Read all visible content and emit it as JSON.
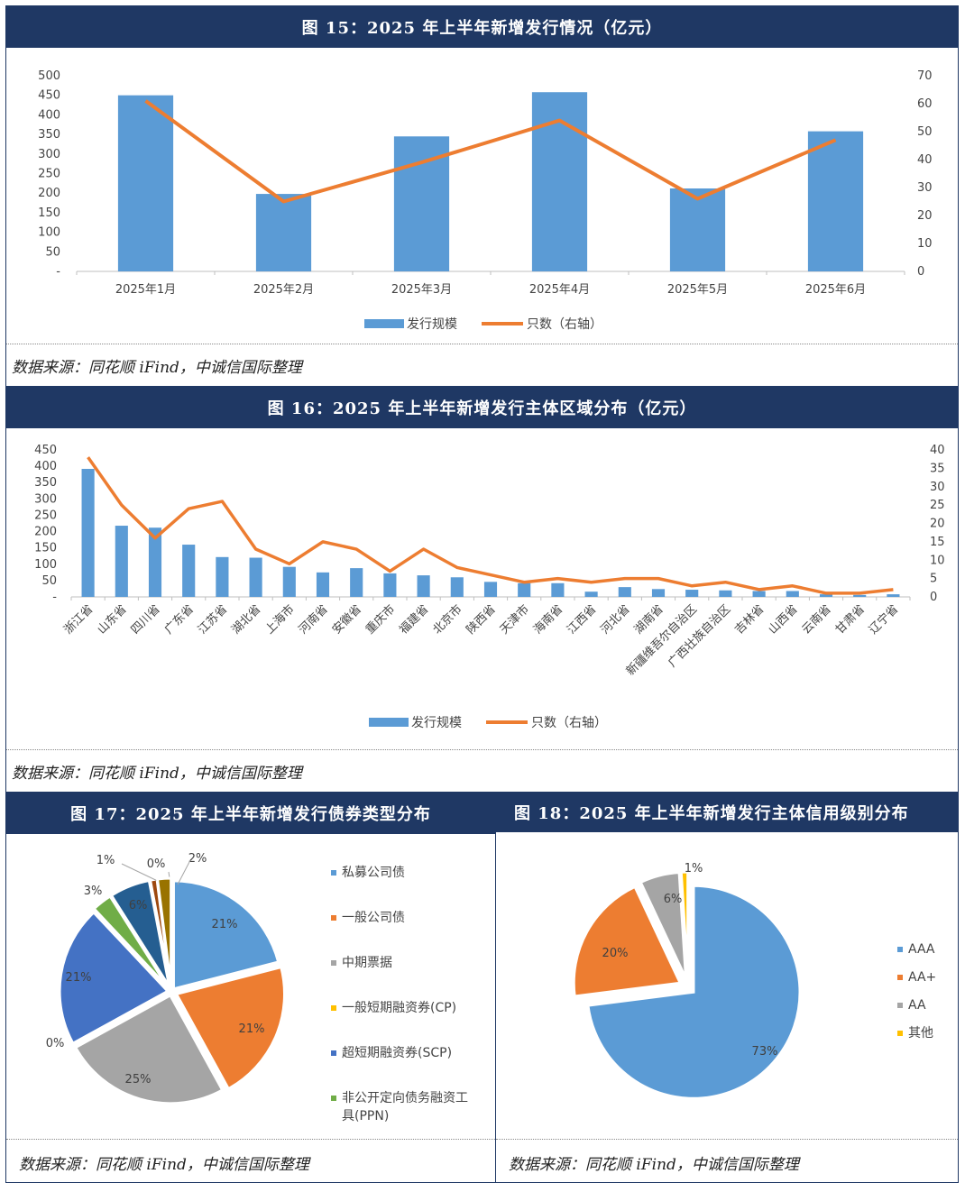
{
  "figures": {
    "f15": {
      "title": "图 15：2025 年上半年新增发行情况（亿元）",
      "source": "数据来源：同花顺 iFind，中诚信国际整理",
      "legend_bar": "发行规模",
      "legend_line": "只数（右轴）"
    },
    "f16": {
      "title": "图 16：2025 年上半年新增发行主体区域分布（亿元）",
      "source": "数据来源：同花顺 iFind，中诚信国际整理",
      "legend_bar": "发行规模",
      "legend_line": "只数（右轴）"
    },
    "f17": {
      "title": "图 17：2025 年上半年新增发行债券类型分布",
      "source": "数据来源：同花顺 iFind，中诚信国际整理"
    },
    "f18": {
      "title": "图 18：2025 年上半年新增发行主体信用级别分布",
      "source": "数据来源：同花顺 iFind，中诚信国际整理"
    }
  },
  "chart_data": [
    {
      "id": "f15",
      "type": "bar",
      "categories": [
        "2025年1月",
        "2025年2月",
        "2025年3月",
        "2025年4月",
        "2025年5月",
        "2025年6月"
      ],
      "series": [
        {
          "name": "发行规模",
          "type": "bar",
          "axis": "left",
          "color": "#5b9bd5",
          "values": [
            450,
            198,
            345,
            458,
            212,
            358
          ]
        },
        {
          "name": "只数（右轴）",
          "type": "line",
          "axis": "right",
          "color": "#ed7d31",
          "values": [
            61,
            25,
            39,
            54,
            26,
            47
          ]
        }
      ],
      "ylim": [
        0,
        500
      ],
      "yticks": [
        "-",
        "50",
        "100",
        "150",
        "200",
        "250",
        "300",
        "350",
        "400",
        "450",
        "500"
      ],
      "y2lim": [
        0,
        70
      ],
      "y2ticks": [
        "0",
        "10",
        "20",
        "30",
        "40",
        "50",
        "60",
        "70"
      ],
      "legend": "bottom",
      "grid": false
    },
    {
      "id": "f16",
      "type": "bar",
      "categories": [
        "浙江省",
        "山东省",
        "四川省",
        "广东省",
        "江苏省",
        "湖北省",
        "上海市",
        "河南省",
        "安徽省",
        "重庆市",
        "福建省",
        "北京市",
        "陕西省",
        "天津市",
        "海南省",
        "江西省",
        "河北省",
        "湖南省",
        "新疆维吾尔自治区",
        "广西壮族自治区",
        "吉林省",
        "山西省",
        "云南省",
        "甘肃省",
        "辽宁省"
      ],
      "series": [
        {
          "name": "发行规模",
          "type": "bar",
          "axis": "left",
          "color": "#5b9bd5",
          "values": [
            392,
            218,
            212,
            160,
            122,
            120,
            92,
            75,
            88,
            72,
            66,
            60,
            46,
            42,
            42,
            16,
            30,
            24,
            22,
            20,
            18,
            18,
            8,
            6,
            8
          ]
        },
        {
          "name": "只数（右轴）",
          "type": "line",
          "axis": "right",
          "color": "#ed7d31",
          "values": [
            38,
            25,
            16,
            24,
            26,
            13,
            9,
            15,
            13,
            7,
            13,
            8,
            6,
            4,
            5,
            4,
            5,
            5,
            3,
            4,
            2,
            3,
            1,
            1,
            2
          ]
        }
      ],
      "ylim": [
        0,
        450
      ],
      "yticks": [
        "-",
        "50",
        "100",
        "150",
        "200",
        "250",
        "300",
        "350",
        "400",
        "450"
      ],
      "y2lim": [
        0,
        40
      ],
      "y2ticks": [
        "0",
        "5",
        "10",
        "15",
        "20",
        "25",
        "30",
        "35",
        "40"
      ],
      "legend": "bottom",
      "grid": false
    },
    {
      "id": "f17",
      "type": "pie",
      "labels": [
        "私募公司债",
        "一般公司债",
        "中期票据",
        "一般短期融资券(CP)",
        "超短期融资券(SCP)",
        "非公开定向债务融资工具(PPN)"
      ],
      "legend_lines": [
        [
          "私募公司债"
        ],
        [
          "一般公司债"
        ],
        [
          "中期票据"
        ],
        [
          "一般短期融资券(CP)"
        ],
        [
          "超短期融资券(SCP)"
        ],
        [
          "非公开定向债务融资工",
          "具(PPN)"
        ]
      ],
      "slices": [
        {
          "label": "私募公司债",
          "value": 21,
          "text": "21%",
          "color": "#5b9bd5",
          "in_legend": true
        },
        {
          "label": "一般公司债",
          "value": 21,
          "text": "21%",
          "color": "#ed7d31",
          "in_legend": true
        },
        {
          "label": "中期票据",
          "value": 25,
          "text": "25%",
          "color": "#a5a5a5",
          "in_legend": true
        },
        {
          "label": "一般短期融资券(CP)",
          "value": 0,
          "text": "0%",
          "color": "#ffc000",
          "in_legend": true
        },
        {
          "label": "超短期融资券(SCP)",
          "value": 21,
          "text": "21%",
          "color": "#4472c4",
          "in_legend": true
        },
        {
          "label": "非公开定向债务融资工具(PPN)",
          "value": 3,
          "text": "3%",
          "color": "#70ad47",
          "in_legend": true
        },
        {
          "label": "",
          "value": 6,
          "text": "6%",
          "color": "#255e91",
          "in_legend": false
        },
        {
          "label": "",
          "value": 1,
          "text": "1%",
          "color": "#9e480e",
          "in_legend": false
        },
        {
          "label": "",
          "value": 0,
          "text": "0%",
          "color": "#636363",
          "in_legend": false
        },
        {
          "label": "",
          "value": 2,
          "text": "2%",
          "color": "#997300",
          "in_legend": false
        }
      ],
      "legend": "right"
    },
    {
      "id": "f18",
      "type": "pie",
      "slices": [
        {
          "label": "AAA",
          "value": 73,
          "text": "73%",
          "color": "#5b9bd5"
        },
        {
          "label": "AA+",
          "value": 20,
          "text": "20%",
          "color": "#ed7d31"
        },
        {
          "label": "AA",
          "value": 6,
          "text": "6%",
          "color": "#a5a5a5"
        },
        {
          "label": "其他",
          "value": 1,
          "text": "1%",
          "color": "#ffc000"
        }
      ],
      "legend": "right"
    }
  ]
}
